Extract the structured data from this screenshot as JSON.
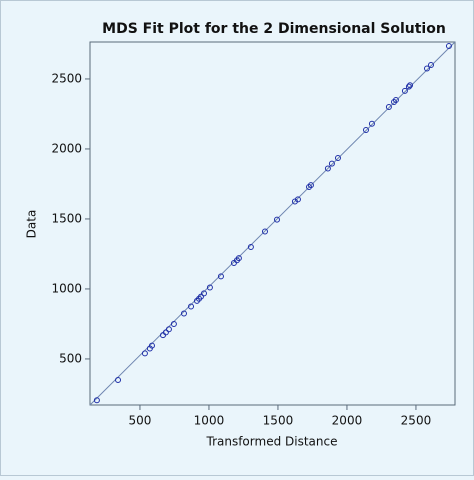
{
  "chart_data": {
    "type": "scatter",
    "title": "MDS Fit Plot for the 2 Dimensional Solution",
    "x_label": "Transformed Distance",
    "y_label": "Data",
    "xlim": [
      138,
      2783
    ],
    "ylim": [
      171,
      2764
    ],
    "xticks": [
      500,
      1000,
      1500,
      2000,
      2500
    ],
    "yticks": [
      500,
      1000,
      1500,
      2000,
      2500
    ],
    "x": [
      188,
      341,
      536,
      572,
      587,
      667,
      688,
      710,
      746,
      819,
      870,
      913,
      928,
      942,
      964,
      1007,
      1087,
      1181,
      1203,
      1217,
      1304,
      1406,
      1493,
      1623,
      1645,
      1725,
      1739,
      1862,
      1891,
      1935,
      2138,
      2181,
      2304,
      2341,
      2355,
      2420,
      2449,
      2457,
      2580,
      2609,
      2739
    ],
    "series": [
      {
        "color": "#1f2fa8",
        "values": [
          205,
          350,
          540,
          575,
          595,
          670,
          690,
          712,
          750,
          825,
          875,
          915,
          930,
          945,
          968,
          1010,
          1090,
          1185,
          1205,
          1220,
          1300,
          1410,
          1495,
          1625,
          1640,
          1728,
          1742,
          1860,
          1895,
          1935,
          2135,
          2180,
          2300,
          2335,
          2350,
          2415,
          2445,
          2455,
          2575,
          2600,
          2735
        ]
      }
    ],
    "fit_line": {
      "color": "#6f86b0",
      "x": [
        138,
        2783
      ],
      "y": [
        171,
        2764
      ]
    }
  }
}
